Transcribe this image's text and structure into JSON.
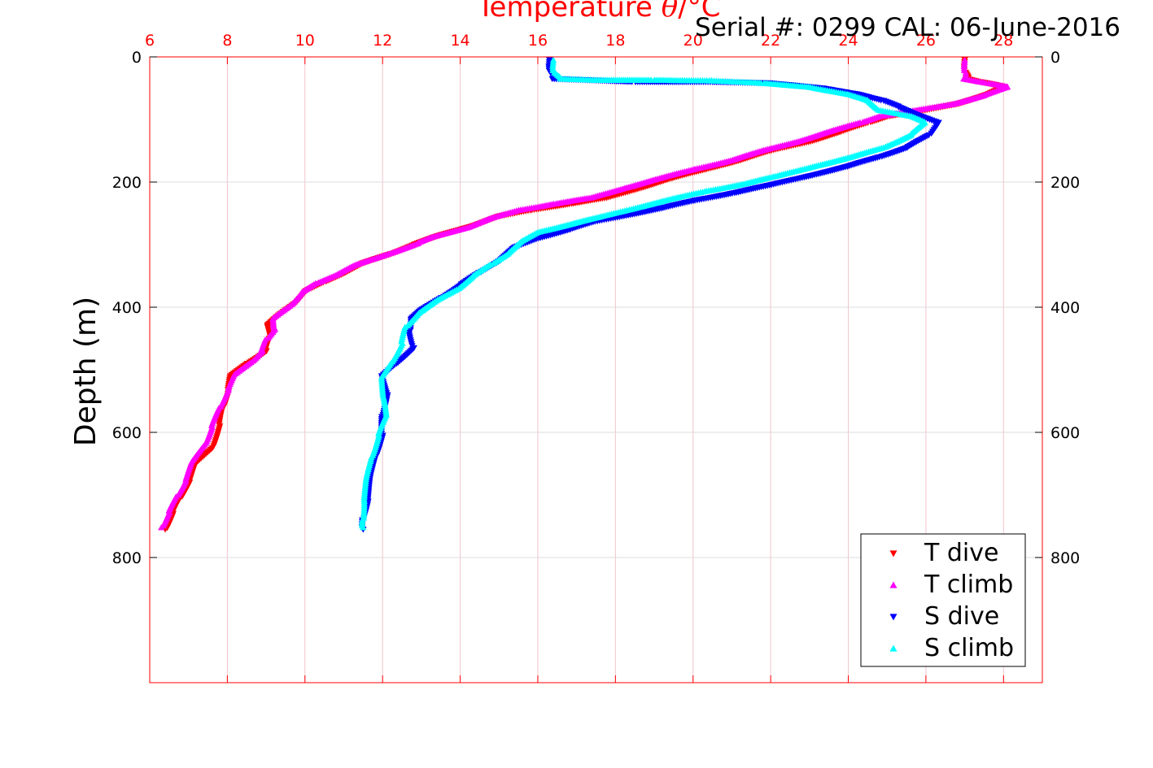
{
  "chart_data": {
    "type": "scatter",
    "title": "Temperature θ/°C",
    "title_parts": [
      "Temperature ",
      "θ",
      "/°C"
    ],
    "subtitle": "Serial #: 0299 CAL: 06-June-2016",
    "xlabel": "Temperature θ/°C",
    "ylabel": "Depth (m)",
    "xlim": [
      6,
      29
    ],
    "ylim": [
      1000,
      0
    ],
    "x_axis_position": "top",
    "y_axis_reversed": true,
    "xticks": [
      6,
      8,
      10,
      12,
      14,
      16,
      18,
      20,
      22,
      24,
      26,
      28
    ],
    "xtick_labels": [
      "6",
      "8",
      "10",
      "12",
      "14",
      "16",
      "18",
      "20",
      "22",
      "24",
      "26",
      "28"
    ],
    "yticks": [
      0,
      200,
      400,
      600,
      800
    ],
    "ytick_labels": [
      "0",
      "200",
      "400",
      "600",
      "800"
    ],
    "y_ticks_both_sides": true,
    "grid": true,
    "legend_position": "bottom-right",
    "series": [
      {
        "name": "T dive",
        "color": "#ff0000",
        "marker": "triangle-down",
        "points": [
          [
            27.0,
            5
          ],
          [
            27.0,
            15
          ],
          [
            27.0,
            25
          ],
          [
            27.1,
            35
          ],
          [
            27.4,
            40
          ],
          [
            28.0,
            48
          ],
          [
            27.6,
            60
          ],
          [
            26.8,
            75
          ],
          [
            26.0,
            85
          ],
          [
            25.0,
            95
          ],
          [
            24.5,
            105
          ],
          [
            23.8,
            120
          ],
          [
            23.0,
            135
          ],
          [
            22.0,
            150
          ],
          [
            21.2,
            165
          ],
          [
            20.3,
            180
          ],
          [
            19.4,
            195
          ],
          [
            18.6,
            210
          ],
          [
            17.8,
            225
          ],
          [
            16.8,
            235
          ],
          [
            15.8,
            245
          ],
          [
            15.0,
            255
          ],
          [
            14.3,
            270
          ],
          [
            13.5,
            285
          ],
          [
            12.8,
            300
          ],
          [
            12.2,
            315
          ],
          [
            11.5,
            330
          ],
          [
            11.0,
            345
          ],
          [
            10.5,
            360
          ],
          [
            10.0,
            375
          ],
          [
            9.7,
            395
          ],
          [
            9.3,
            415
          ],
          [
            9.0,
            430
          ],
          [
            9.1,
            450
          ],
          [
            9.0,
            470
          ],
          [
            8.5,
            490
          ],
          [
            8.1,
            510
          ],
          [
            8.0,
            535
          ],
          [
            7.9,
            560
          ],
          [
            7.8,
            590
          ],
          [
            7.6,
            625
          ],
          [
            7.2,
            650
          ],
          [
            7.0,
            680
          ],
          [
            6.8,
            705
          ],
          [
            6.6,
            730
          ],
          [
            6.4,
            755
          ]
        ]
      },
      {
        "name": "T climb",
        "color": "#ff00ff",
        "marker": "triangle-up",
        "points": [
          [
            27.0,
            5
          ],
          [
            27.0,
            15
          ],
          [
            27.0,
            25
          ],
          [
            27.0,
            35
          ],
          [
            27.6,
            42
          ],
          [
            28.1,
            48
          ],
          [
            27.5,
            62
          ],
          [
            26.7,
            75
          ],
          [
            25.8,
            85
          ],
          [
            24.8,
            95
          ],
          [
            24.3,
            105
          ],
          [
            23.5,
            120
          ],
          [
            22.7,
            135
          ],
          [
            21.8,
            150
          ],
          [
            21.0,
            165
          ],
          [
            20.0,
            180
          ],
          [
            19.1,
            195
          ],
          [
            18.2,
            210
          ],
          [
            17.4,
            225
          ],
          [
            16.4,
            235
          ],
          [
            15.5,
            245
          ],
          [
            14.8,
            258
          ],
          [
            14.2,
            272
          ],
          [
            13.3,
            288
          ],
          [
            12.9,
            298
          ],
          [
            12.0,
            318
          ],
          [
            11.3,
            333
          ],
          [
            10.8,
            348
          ],
          [
            10.3,
            362
          ],
          [
            9.9,
            378
          ],
          [
            9.6,
            398
          ],
          [
            9.2,
            418
          ],
          [
            9.2,
            435
          ],
          [
            9.0,
            452
          ],
          [
            8.9,
            470
          ],
          [
            8.6,
            488
          ],
          [
            8.2,
            508
          ],
          [
            8.0,
            532
          ],
          [
            7.8,
            562
          ],
          [
            7.6,
            592
          ],
          [
            7.4,
            620
          ],
          [
            7.1,
            648
          ],
          [
            6.9,
            678
          ],
          [
            6.7,
            703
          ],
          [
            6.5,
            728
          ],
          [
            6.3,
            752
          ]
        ]
      },
      {
        "name": "S dive",
        "color": "#0000ff",
        "marker": "triangle-down",
        "points": [
          [
            16.3,
            5
          ],
          [
            16.3,
            15
          ],
          [
            16.3,
            25
          ],
          [
            16.4,
            35
          ],
          [
            18.5,
            40
          ],
          [
            20.5,
            40
          ],
          [
            22.0,
            42
          ],
          [
            23.3,
            50
          ],
          [
            24.3,
            60
          ],
          [
            24.9,
            70
          ],
          [
            25.3,
            80
          ],
          [
            25.9,
            95
          ],
          [
            26.3,
            105
          ],
          [
            26.1,
            125
          ],
          [
            25.5,
            145
          ],
          [
            24.8,
            160
          ],
          [
            24.0,
            175
          ],
          [
            23.0,
            190
          ],
          [
            22.0,
            205
          ],
          [
            21.0,
            218
          ],
          [
            20.0,
            230
          ],
          [
            19.2,
            242
          ],
          [
            18.3,
            253
          ],
          [
            17.5,
            263
          ],
          [
            16.8,
            276
          ],
          [
            16.0,
            290
          ],
          [
            15.4,
            305
          ],
          [
            15.0,
            325
          ],
          [
            14.5,
            345
          ],
          [
            14.0,
            365
          ],
          [
            13.5,
            385
          ],
          [
            13.0,
            405
          ],
          [
            12.7,
            420
          ],
          [
            12.7,
            440
          ],
          [
            12.8,
            465
          ],
          [
            12.3,
            492
          ],
          [
            12.0,
            510
          ],
          [
            12.1,
            540
          ],
          [
            12.0,
            575
          ],
          [
            12.0,
            605
          ],
          [
            11.8,
            640
          ],
          [
            11.7,
            675
          ],
          [
            11.6,
            710
          ],
          [
            11.5,
            740
          ],
          [
            11.5,
            755
          ]
        ]
      },
      {
        "name": "S climb",
        "color": "#00ffff",
        "marker": "triangle-up",
        "points": [
          [
            16.4,
            5
          ],
          [
            16.4,
            15
          ],
          [
            16.4,
            25
          ],
          [
            16.6,
            35
          ],
          [
            17.5,
            37
          ],
          [
            19.0,
            37
          ],
          [
            20.5,
            38
          ],
          [
            21.8,
            42
          ],
          [
            23.0,
            48
          ],
          [
            24.0,
            60
          ],
          [
            24.5,
            70
          ],
          [
            24.8,
            85
          ],
          [
            25.6,
            95
          ],
          [
            26.0,
            105
          ],
          [
            25.6,
            125
          ],
          [
            24.9,
            145
          ],
          [
            24.1,
            160
          ],
          [
            23.1,
            175
          ],
          [
            22.2,
            190
          ],
          [
            21.3,
            203
          ],
          [
            20.3,
            215
          ],
          [
            19.4,
            228
          ],
          [
            18.6,
            240
          ],
          [
            17.6,
            256
          ],
          [
            16.8,
            268
          ],
          [
            16.0,
            280
          ],
          [
            15.6,
            295
          ],
          [
            15.2,
            315
          ],
          [
            14.8,
            332
          ],
          [
            14.3,
            352
          ],
          [
            13.9,
            372
          ],
          [
            13.4,
            390
          ],
          [
            12.9,
            410
          ],
          [
            12.6,
            432
          ],
          [
            12.5,
            458
          ],
          [
            12.2,
            490
          ],
          [
            12.0,
            512
          ],
          [
            12.0,
            545
          ],
          [
            12.1,
            575
          ],
          [
            11.9,
            605
          ],
          [
            11.7,
            640
          ],
          [
            11.6,
            675
          ],
          [
            11.5,
            710
          ],
          [
            11.5,
            740
          ],
          [
            11.5,
            752
          ]
        ]
      }
    ]
  }
}
